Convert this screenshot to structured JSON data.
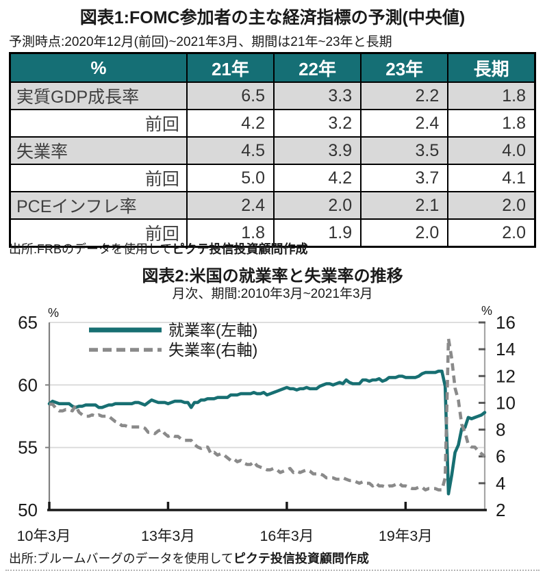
{
  "figure1": {
    "title": "図表1:FOMC参加者の主な経済指標の予測(中央値)",
    "subtitle": "予測時点:2020年12月(前回)~2021年3月、期間は21年~23年と長期",
    "table": {
      "corner_label": "%",
      "columns": [
        "21年",
        "22年",
        "23年",
        "長期"
      ],
      "header_bg": "#156f75",
      "header_text_color": "#ffffff",
      "shaded_row_bg": "#d9d9d9",
      "rows": [
        {
          "label": "実質GDP成長率",
          "shaded": true,
          "label_align": "left",
          "values": [
            "6.5",
            "3.3",
            "2.2",
            "1.8"
          ]
        },
        {
          "label": "前回",
          "shaded": false,
          "label_align": "right",
          "values": [
            "4.2",
            "3.2",
            "2.4",
            "1.8"
          ]
        },
        {
          "label": "失業率",
          "shaded": true,
          "label_align": "left",
          "values": [
            "4.5",
            "3.9",
            "3.5",
            "4.0"
          ]
        },
        {
          "label": "前回",
          "shaded": false,
          "label_align": "right",
          "values": [
            "5.0",
            "4.2",
            "3.7",
            "4.1"
          ]
        },
        {
          "label": "PCEインフレ率",
          "shaded": true,
          "label_align": "left",
          "values": [
            "2.4",
            "2.0",
            "2.1",
            "2.0"
          ]
        },
        {
          "label": "前回",
          "shaded": false,
          "label_align": "right",
          "values": [
            "1.8",
            "1.9",
            "2.0",
            "2.0"
          ]
        }
      ]
    },
    "source_prefix": "出所:FRBのデータを使用して",
    "source_bold": "ピクテ投信投資顧問作成"
  },
  "figure2": {
    "title": "図表2:米国の就業率と失業率の推移",
    "subtitle": "月次、期間:2010年3月~2021年3月",
    "source_prefix": "出所:ブルームバーグのデータを使用して",
    "source_bold": "ピクテ投信投資顧問作成"
  },
  "chart_data": {
    "type": "line",
    "title": "図表2:米国の就業率と失業率の推移",
    "subtitle": "月次、期間:2010年3月~2021年3月",
    "x_start": "2010-03",
    "x_end": "2021-03",
    "x_frequency": "monthly",
    "x_tick_labels": [
      "10年3月",
      "13年3月",
      "16年3月",
      "19年3月"
    ],
    "x_tick_month_offsets": [
      0,
      36,
      72,
      108
    ],
    "left_axis": {
      "label": "%",
      "min": 50,
      "max": 65,
      "ticks": [
        65,
        60,
        55,
        50
      ]
    },
    "right_axis": {
      "label": "%",
      "min": 2,
      "max": 16,
      "ticks": [
        16,
        14,
        12,
        10,
        8,
        6,
        4,
        2
      ]
    },
    "grid_left_values": [
      65,
      60,
      55
    ],
    "legend_position": "top-left-inside",
    "colors": {
      "employment": "#176f72",
      "unemployment": "#8a8a8a",
      "grid": "#d9d9d9",
      "axis": "#1a1a1a",
      "spine": "#8c8c8c",
      "tick": "#595959"
    },
    "series": [
      {
        "name": "就業率(左軸)",
        "axis": "left",
        "style": "solid",
        "color": "#176f72",
        "values": [
          58.5,
          58.7,
          58.6,
          58.5,
          58.5,
          58.5,
          58.5,
          58.3,
          58.2,
          58.3,
          58.3,
          58.4,
          58.4,
          58.4,
          58.4,
          58.2,
          58.2,
          58.3,
          58.4,
          58.4,
          58.5,
          58.5,
          58.5,
          58.5,
          58.5,
          58.5,
          58.6,
          58.6,
          58.5,
          58.4,
          58.6,
          58.8,
          58.7,
          58.6,
          58.6,
          58.6,
          58.5,
          58.6,
          58.7,
          58.7,
          58.7,
          58.6,
          58.6,
          58.2,
          58.6,
          58.6,
          58.8,
          58.8,
          58.9,
          58.9,
          58.9,
          59.0,
          59.0,
          59.0,
          59.0,
          59.2,
          59.2,
          59.2,
          59.3,
          59.3,
          59.3,
          59.3,
          59.4,
          59.3,
          59.3,
          59.4,
          59.2,
          59.3,
          59.4,
          59.5,
          59.6,
          59.7,
          59.8,
          59.7,
          59.7,
          59.6,
          59.7,
          59.7,
          59.8,
          59.7,
          59.7,
          59.7,
          59.9,
          60.0,
          60.1,
          60.1,
          60.0,
          60.1,
          60.2,
          60.1,
          60.4,
          60.2,
          60.1,
          60.1,
          60.1,
          60.4,
          60.4,
          60.3,
          60.4,
          60.4,
          60.5,
          60.3,
          60.4,
          60.6,
          60.6,
          60.6,
          60.7,
          60.7,
          60.6,
          60.6,
          60.6,
          60.6,
          60.7,
          60.9,
          61.0,
          61.0,
          61.0,
          61.0,
          61.1,
          61.1,
          59.9,
          51.3,
          52.8,
          54.6,
          55.2,
          56.5,
          56.6,
          57.4,
          57.3,
          57.4,
          57.5,
          57.6,
          57.8
        ]
      },
      {
        "name": "失業率(右軸)",
        "axis": "right",
        "style": "dashed",
        "color": "#8a8a8a",
        "values": [
          9.9,
          9.9,
          9.6,
          9.4,
          9.4,
          9.5,
          9.5,
          9.4,
          9.8,
          9.3,
          9.1,
          9.0,
          9.0,
          9.1,
          9.0,
          9.1,
          9.0,
          9.0,
          9.0,
          8.8,
          8.6,
          8.5,
          8.3,
          8.3,
          8.2,
          8.2,
          8.2,
          8.2,
          8.2,
          8.1,
          7.8,
          7.8,
          7.7,
          7.9,
          8.0,
          7.7,
          7.5,
          7.6,
          7.5,
          7.5,
          7.3,
          7.2,
          7.2,
          7.2,
          6.9,
          6.7,
          6.6,
          6.7,
          6.7,
          6.2,
          6.3,
          6.1,
          6.2,
          6.1,
          5.9,
          5.7,
          5.8,
          5.6,
          5.7,
          5.5,
          5.4,
          5.4,
          5.6,
          5.3,
          5.2,
          5.1,
          5.0,
          5.0,
          5.1,
          5.0,
          4.8,
          4.9,
          5.0,
          5.1,
          4.8,
          4.9,
          4.8,
          4.9,
          5.0,
          4.9,
          4.7,
          4.7,
          4.7,
          4.6,
          4.4,
          4.4,
          4.4,
          4.3,
          4.3,
          4.4,
          4.3,
          4.2,
          4.2,
          4.1,
          4.0,
          4.1,
          4.0,
          4.0,
          3.8,
          4.0,
          3.8,
          3.8,
          3.7,
          3.8,
          3.8,
          3.9,
          4.0,
          3.8,
          3.8,
          3.7,
          3.6,
          3.6,
          3.7,
          3.7,
          3.5,
          3.6,
          3.6,
          3.6,
          3.5,
          3.5,
          4.4,
          14.8,
          13.3,
          11.1,
          10.2,
          8.4,
          7.8,
          6.9,
          6.7,
          6.7,
          6.4,
          6.2,
          6.0
        ]
      }
    ]
  }
}
